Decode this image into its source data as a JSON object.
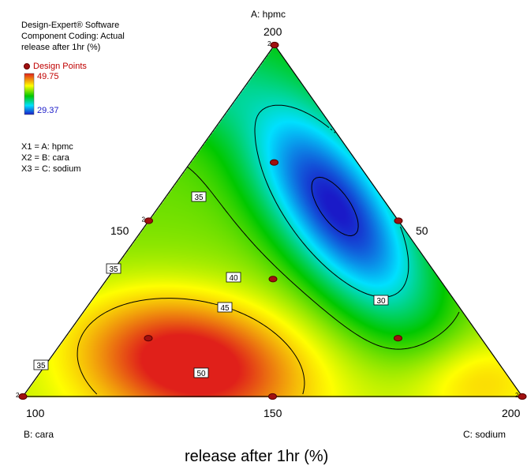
{
  "header": {
    "software": "Design-Expert® Software",
    "coding": "Component Coding: Actual",
    "response": "release after 1hr (%)"
  },
  "legend": {
    "design_points_label": "Design Points",
    "max_value": "49.75",
    "min_value": "29.37",
    "max_color": "#e0201a",
    "min_color": "#1a1ac8"
  },
  "factors": [
    "X1 = A: hpmc",
    "X2 = B: cara",
    "X3 = C: sodium"
  ],
  "chart_data": {
    "type": "ternary-contour",
    "title": "release after 1hr (%)",
    "vertices": {
      "top": {
        "label": "A: hpmc",
        "value": "200"
      },
      "left": {
        "label": "B: cara",
        "value": "100"
      },
      "right": {
        "label": "C: sodium",
        "value": "200"
      }
    },
    "edge_labels": {
      "left_mid": "150",
      "right_mid": "50",
      "bottom_mid": "150"
    },
    "response_range": [
      29.37,
      49.75
    ],
    "contour_levels": [
      "30",
      "35",
      "35",
      "35",
      "40",
      "45",
      "50"
    ],
    "design_points": [
      {
        "A": 1.0,
        "B": 0.0,
        "C": 0.0,
        "replicates": 2
      },
      {
        "A": 0.0,
        "B": 1.0,
        "C": 0.0,
        "replicates": 2
      },
      {
        "A": 0.0,
        "B": 0.0,
        "C": 1.0,
        "replicates": 2
      },
      {
        "A": 0.5,
        "B": 0.5,
        "C": 0.0,
        "replicates": 2
      },
      {
        "A": 0.5,
        "B": 0.0,
        "C": 0.5,
        "replicates": 1
      },
      {
        "A": 0.0,
        "B": 0.5,
        "C": 0.5,
        "replicates": 1
      },
      {
        "A": 0.667,
        "B": 0.167,
        "C": 0.167,
        "replicates": 1
      },
      {
        "A": 0.333,
        "B": 0.333,
        "C": 0.333,
        "replicates": 1
      },
      {
        "A": 0.167,
        "B": 0.667,
        "C": 0.167,
        "replicates": 1
      },
      {
        "A": 0.167,
        "B": 0.167,
        "C": 0.667,
        "replicates": 1
      }
    ]
  }
}
